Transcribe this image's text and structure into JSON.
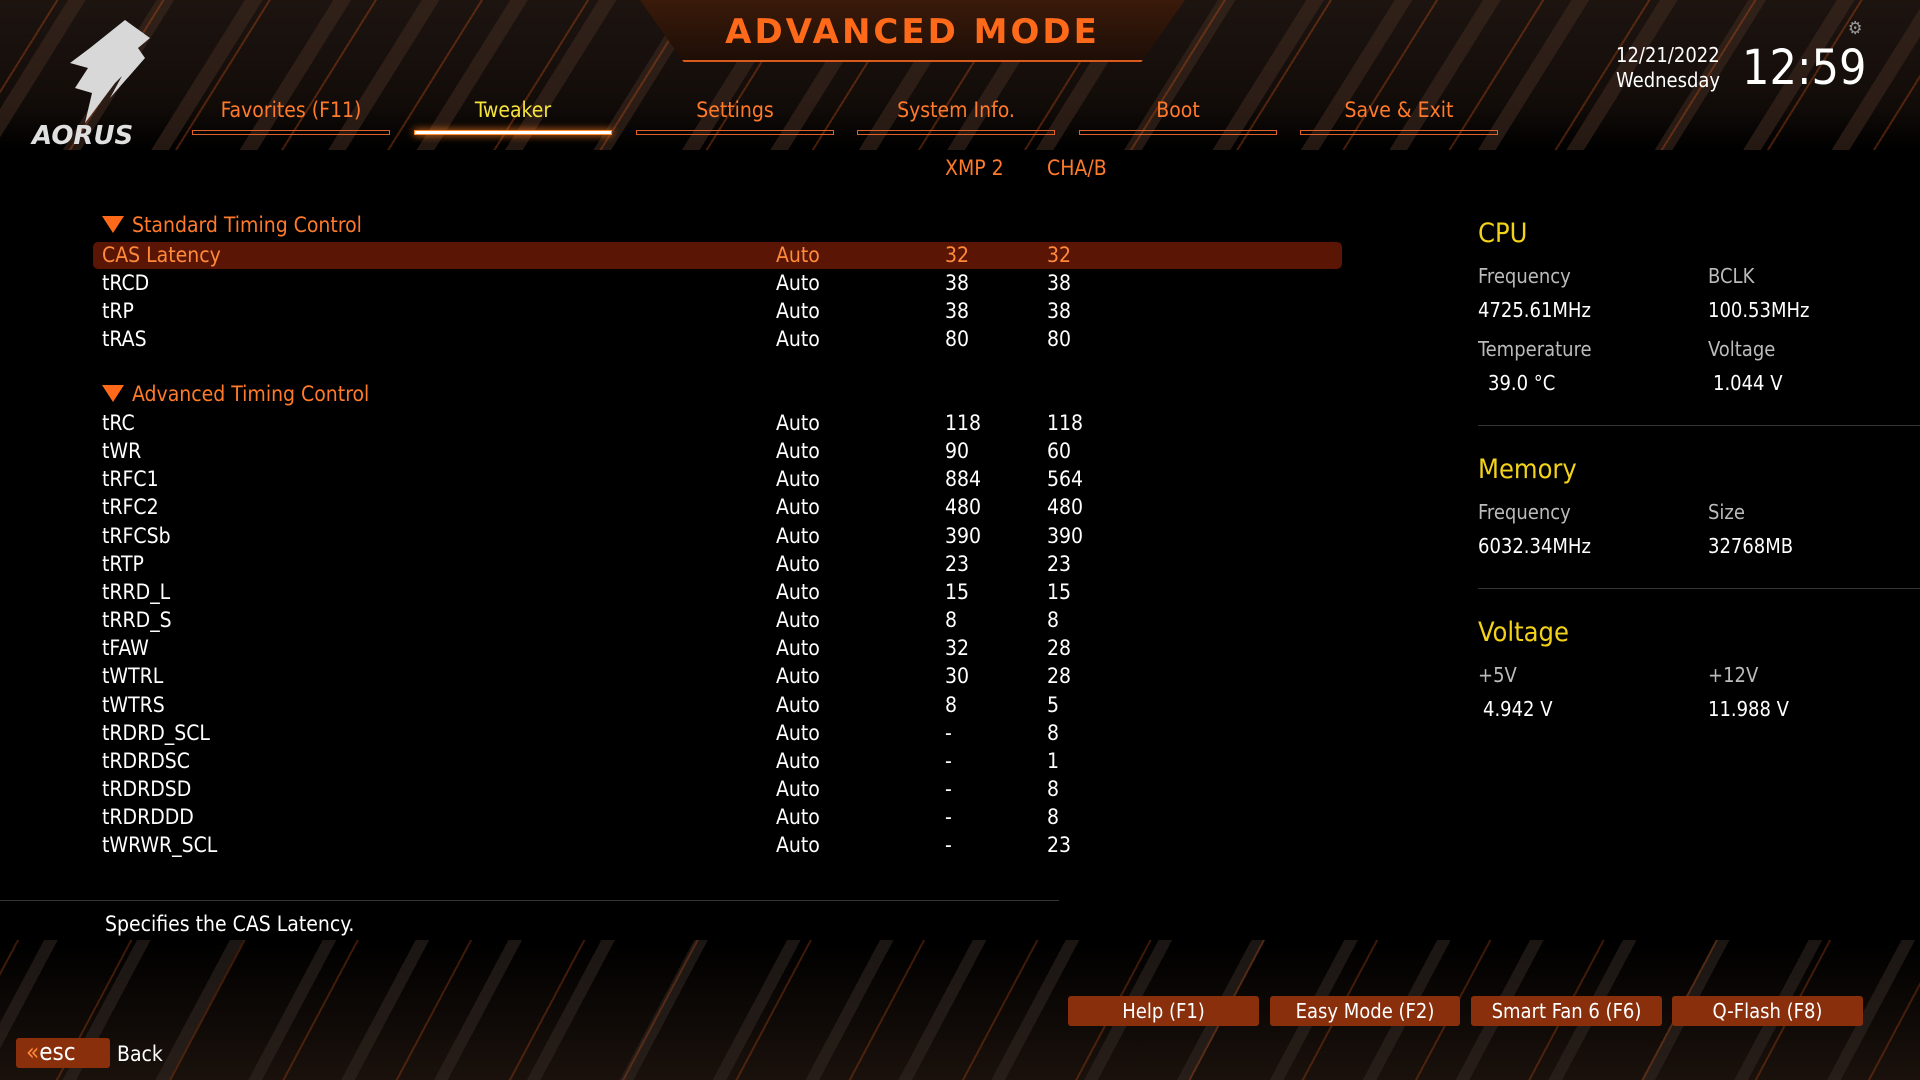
{
  "header": {
    "title": "ADVANCED MODE",
    "logo_text": "AORUS",
    "date": "12/21/2022",
    "day": "Wednesday",
    "time": "12:59"
  },
  "tabs": [
    {
      "label": "Favorites (F11)"
    },
    {
      "label": "Tweaker",
      "active": true
    },
    {
      "label": "Settings"
    },
    {
      "label": "System Info."
    },
    {
      "label": "Boot"
    },
    {
      "label": "Save & Exit"
    }
  ],
  "columns": {
    "xmp": "XMP 2",
    "cha": "CHA/B"
  },
  "standard": {
    "title": "Standard Timing Control",
    "rows": [
      {
        "name": "CAS Latency",
        "value": "Auto",
        "xmp": "32",
        "cha": "32"
      },
      {
        "name": "tRCD",
        "value": "Auto",
        "xmp": "38",
        "cha": "38"
      },
      {
        "name": "tRP",
        "value": "Auto",
        "xmp": "38",
        "cha": "38"
      },
      {
        "name": "tRAS",
        "value": "Auto",
        "xmp": "80",
        "cha": "80"
      }
    ]
  },
  "advanced": {
    "title": "Advanced Timing Control",
    "rows": [
      {
        "name": "tRC",
        "value": "Auto",
        "xmp": "118",
        "cha": "118"
      },
      {
        "name": "tWR",
        "value": "Auto",
        "xmp": "90",
        "cha": "60"
      },
      {
        "name": "tRFC1",
        "value": "Auto",
        "xmp": "884",
        "cha": "564"
      },
      {
        "name": "tRFC2",
        "value": "Auto",
        "xmp": "480",
        "cha": "480"
      },
      {
        "name": "tRFCSb",
        "value": "Auto",
        "xmp": "390",
        "cha": "390"
      },
      {
        "name": "tRTP",
        "value": "Auto",
        "xmp": "23",
        "cha": "23"
      },
      {
        "name": "tRRD_L",
        "value": "Auto",
        "xmp": "15",
        "cha": "15"
      },
      {
        "name": "tRRD_S",
        "value": "Auto",
        "xmp": "8",
        "cha": "8"
      },
      {
        "name": "tFAW",
        "value": "Auto",
        "xmp": "32",
        "cha": "28"
      },
      {
        "name": "tWTRL",
        "value": "Auto",
        "xmp": "30",
        "cha": "28"
      },
      {
        "name": "tWTRS",
        "value": "Auto",
        "xmp": "8",
        "cha": "5"
      },
      {
        "name": "tRDRD_SCL",
        "value": "Auto",
        "xmp": "-",
        "cha": "8"
      },
      {
        "name": "tRDRDSC",
        "value": "Auto",
        "xmp": "-",
        "cha": "1"
      },
      {
        "name": "tRDRDSD",
        "value": "Auto",
        "xmp": "-",
        "cha": "8"
      },
      {
        "name": "tRDRDDD",
        "value": "Auto",
        "xmp": "-",
        "cha": "8"
      },
      {
        "name": "tWRWR_SCL",
        "value": "Auto",
        "xmp": "-",
        "cha": "23"
      }
    ]
  },
  "help_text": "Specifies the CAS Latency.",
  "panel": {
    "cpu": {
      "title": "CPU",
      "freq_label": "Frequency",
      "freq": "4725.61MHz",
      "bclk_label": "BCLK",
      "bclk": "100.53MHz",
      "temp_label": "Temperature",
      "temp": "39.0 °C",
      "volt_label": "Voltage",
      "volt": "1.044 V"
    },
    "memory": {
      "title": "Memory",
      "freq_label": "Frequency",
      "freq": "6032.34MHz",
      "size_label": "Size",
      "size": "32768MB"
    },
    "voltage": {
      "title": "Voltage",
      "v5_label": "+5V",
      "v5": "4.942 V",
      "v12_label": "+12V",
      "v12": "11.988 V"
    }
  },
  "buttons": [
    {
      "label": "Help (F1)"
    },
    {
      "label": "Easy Mode (F2)"
    },
    {
      "label": "Smart Fan 6 (F6)"
    },
    {
      "label": "Q-Flash (F8)"
    }
  ],
  "esc": {
    "key": "esc",
    "label": "Back"
  },
  "colors": {
    "accent": "#ff7a2a",
    "active_tab": "#f3e33a",
    "panel_heading": "#f3d21a",
    "selected_row": "#5a1505",
    "button": "#8a2f0c"
  }
}
